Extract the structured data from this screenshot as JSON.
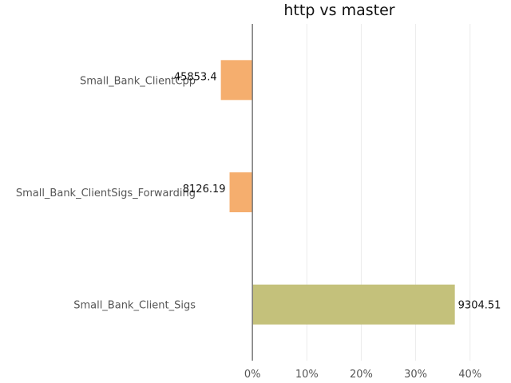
{
  "chart_data": {
    "type": "bar",
    "orientation": "horizontal",
    "title": "http vs master",
    "xlabel": "",
    "ylabel": "",
    "categories": [
      "Small_Bank_ClientCpp",
      "Small_Bank_ClientSigs_Forwarding",
      "Small_Bank_Client_Sigs"
    ],
    "values": [
      -5.8,
      -4.2,
      37.2
    ],
    "value_labels": [
      "45853.4",
      "8126.19",
      "9304.51"
    ],
    "colors": [
      "#f5ae6e",
      "#f5ae6e",
      "#c4c17b"
    ],
    "xlim": [
      -10,
      44
    ],
    "xticks": [
      0,
      10,
      20,
      30,
      40
    ],
    "xtick_labels": [
      "0%",
      "10%",
      "20%",
      "30%",
      "40%"
    ],
    "grid": true,
    "legend": "none"
  }
}
